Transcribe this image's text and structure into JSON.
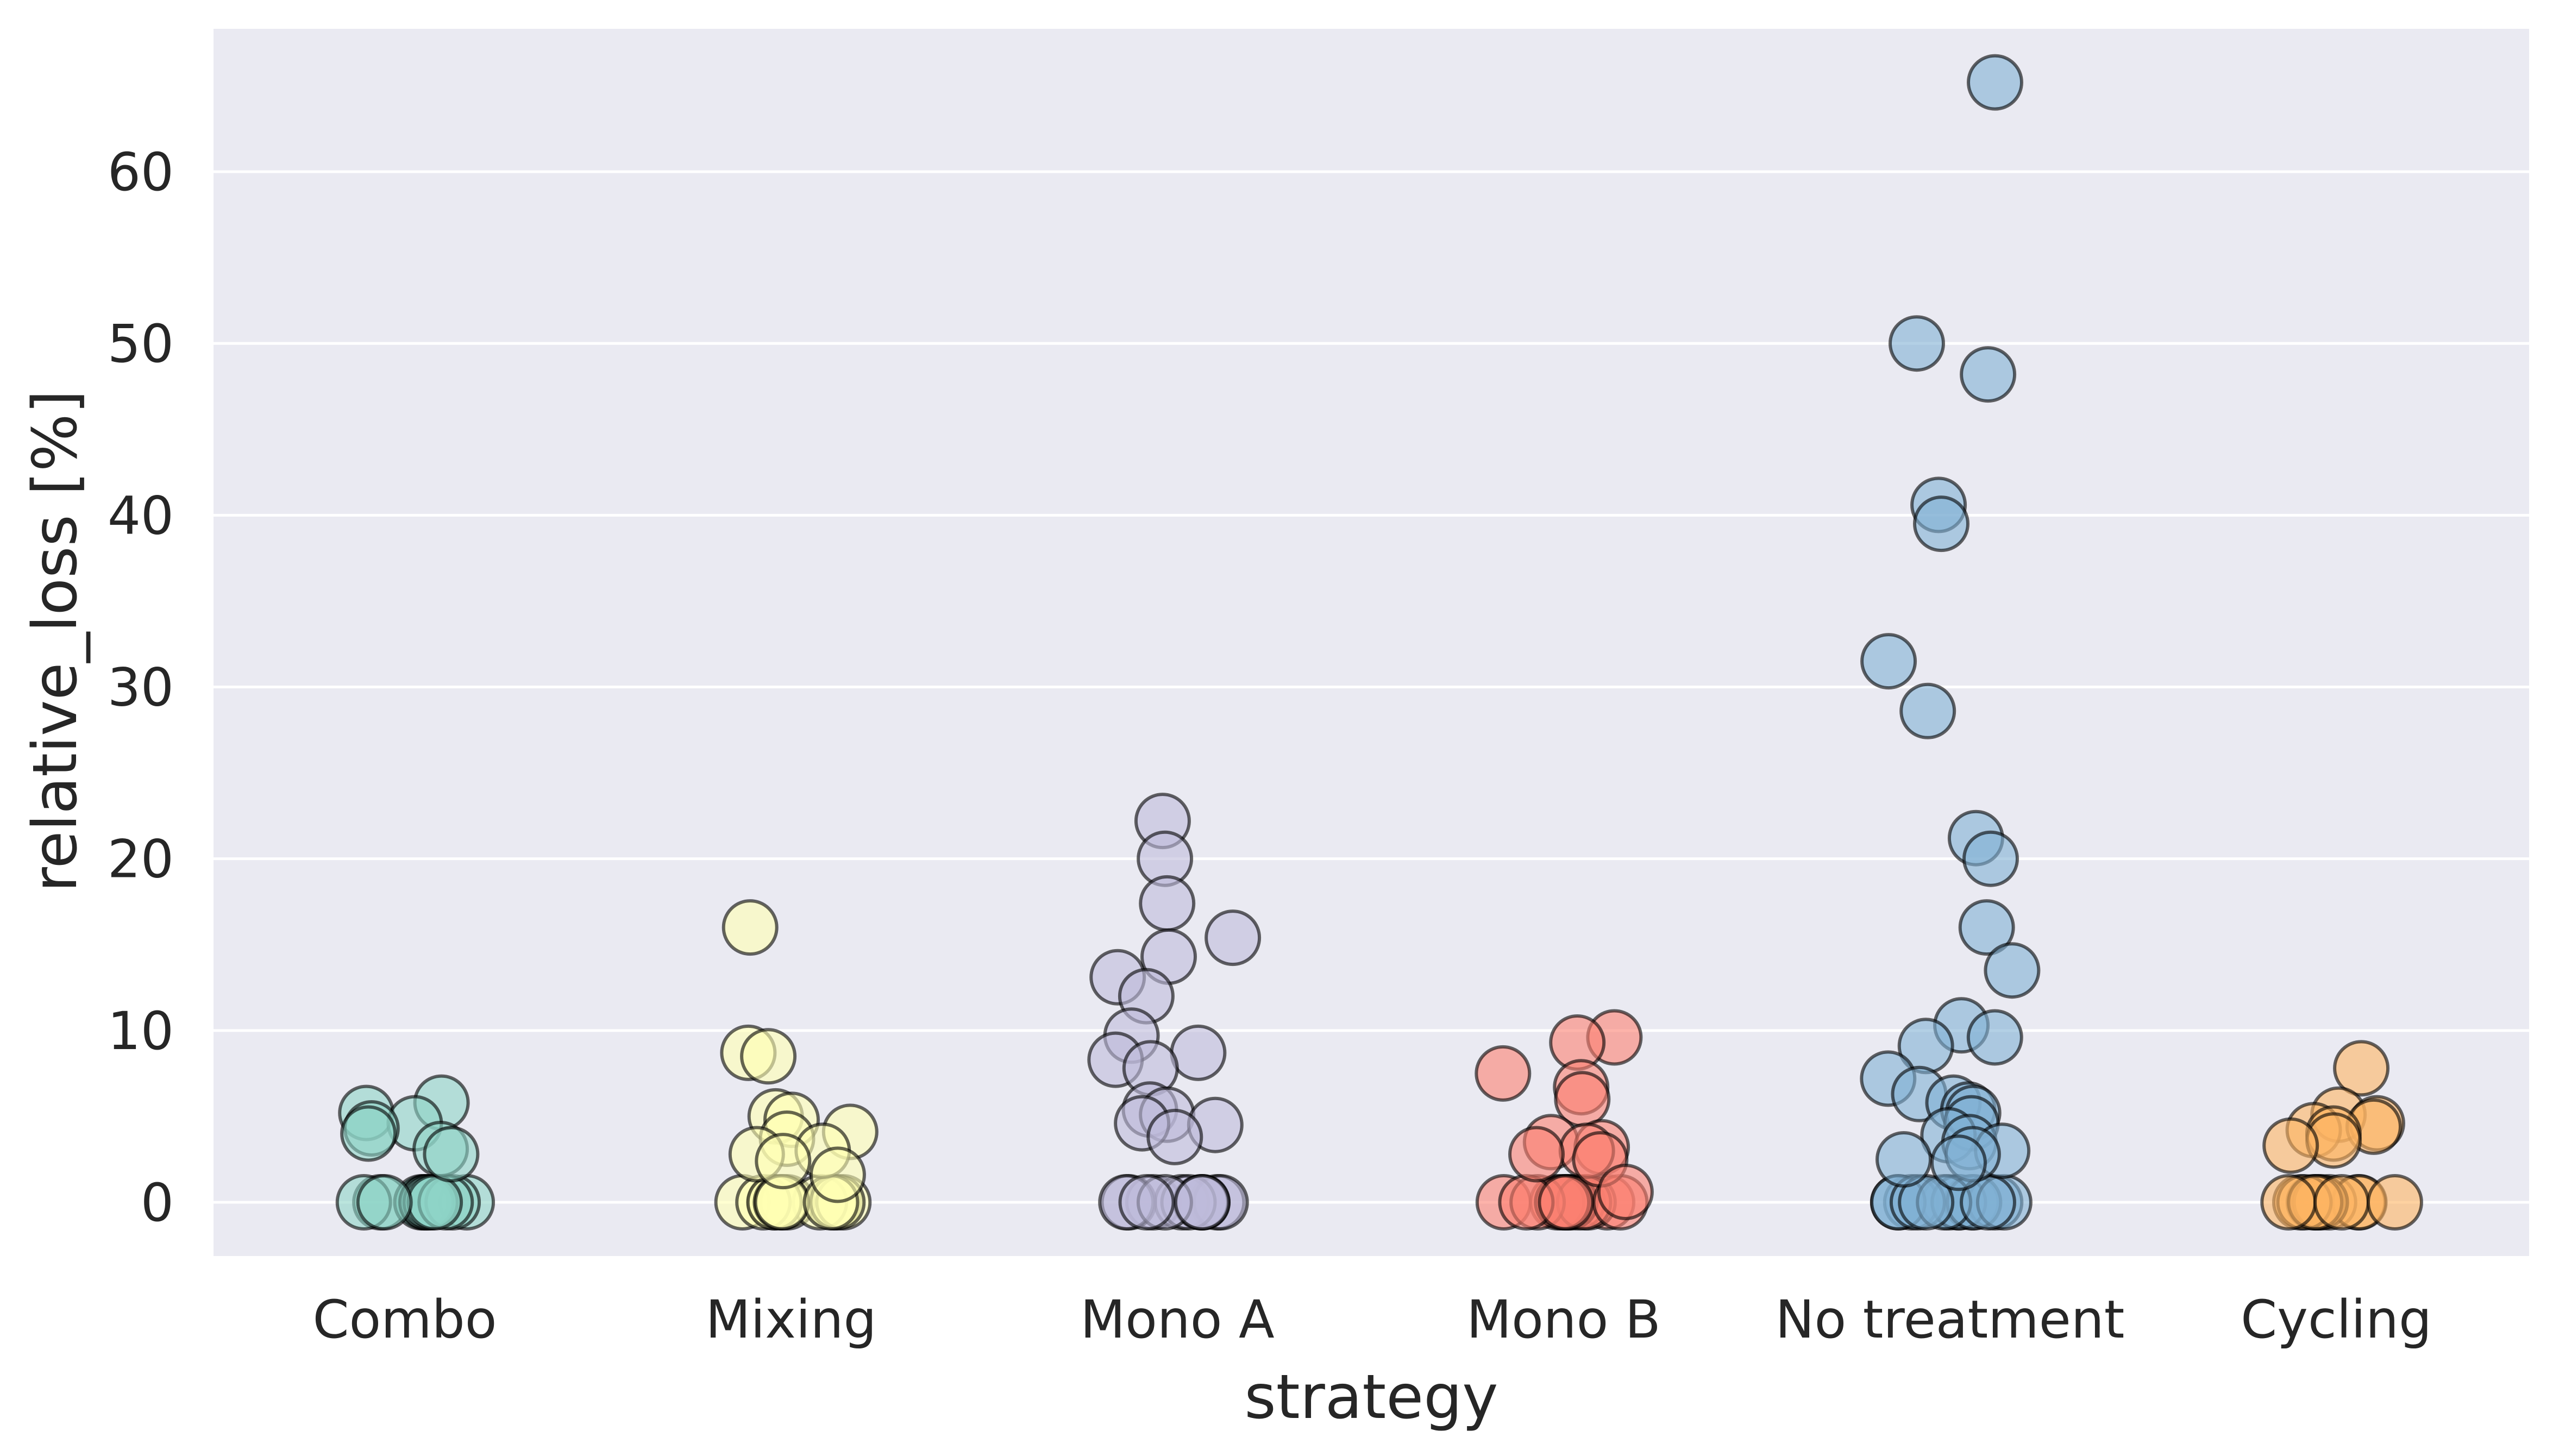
{
  "chart_data": {
    "type": "scatter",
    "style": "strip plot with jitter",
    "xlabel": "strategy",
    "ylabel": "relative_loss [%]",
    "ylim": [
      -3,
      68
    ],
    "yticks": [
      0,
      10,
      20,
      30,
      40,
      50,
      60
    ],
    "grid": true,
    "background": "#eaeaf2",
    "marker_alpha": 0.6,
    "categories": [
      "Combo",
      "Mixing",
      "Mono A",
      "Mono B",
      "No treatment",
      "Cycling"
    ],
    "series": [
      {
        "category": "Combo",
        "color": "#8dd3c7",
        "values": [
          0,
          0,
          0,
          0,
          0,
          0,
          0,
          0,
          0,
          0,
          0,
          0,
          5.8,
          5.2,
          4.6,
          4.3,
          4.0,
          3.1,
          2.8
        ]
      },
      {
        "category": "Mixing",
        "color": "#ffffb3",
        "values": [
          0,
          0,
          0,
          0,
          0,
          0,
          0,
          0,
          0,
          0,
          0,
          0,
          16.0,
          8.7,
          8.5,
          5.0,
          4.8,
          4.1,
          3.7,
          3.0,
          2.8,
          2.4,
          1.6
        ]
      },
      {
        "category": "Mono A",
        "color": "#bebada",
        "values": [
          0,
          0,
          0,
          0,
          0,
          0,
          0,
          0,
          0,
          0,
          0,
          0,
          22.2,
          20.0,
          17.4,
          15.4,
          14.3,
          13.1,
          12.0,
          9.7,
          8.7,
          8.3,
          7.8,
          5.4,
          5.1,
          4.6,
          4.5,
          3.8
        ]
      },
      {
        "category": "Mono B",
        "color": "#fb8072",
        "values": [
          0,
          0,
          0,
          0,
          0,
          0,
          0,
          0,
          0,
          0,
          0,
          0,
          0,
          0,
          9.6,
          9.3,
          7.5,
          6.7,
          6.0,
          3.5,
          3.2,
          3.0,
          2.8,
          2.5,
          0.6
        ]
      },
      {
        "category": "No treatment",
        "color": "#80b1d3",
        "values": [
          0,
          0,
          0,
          0,
          0,
          0,
          0,
          0,
          0,
          0,
          0,
          0,
          0,
          0,
          65.2,
          50.0,
          48.2,
          40.6,
          39.5,
          31.5,
          28.6,
          21.2,
          20.0,
          16.0,
          13.5,
          10.3,
          9.6,
          9.1,
          7.2,
          6.3,
          5.8,
          5.4,
          5.2,
          4.6,
          3.9,
          3.5,
          3.0,
          2.8,
          2.5,
          2.3
        ]
      },
      {
        "category": "Cycling",
        "color": "#fdb462",
        "values": [
          0,
          0,
          0,
          0,
          0,
          0,
          0,
          0,
          0,
          0,
          0,
          0,
          7.8,
          5.1,
          4.6,
          4.4,
          4.2,
          4.0,
          3.6,
          3.3
        ]
      }
    ]
  }
}
